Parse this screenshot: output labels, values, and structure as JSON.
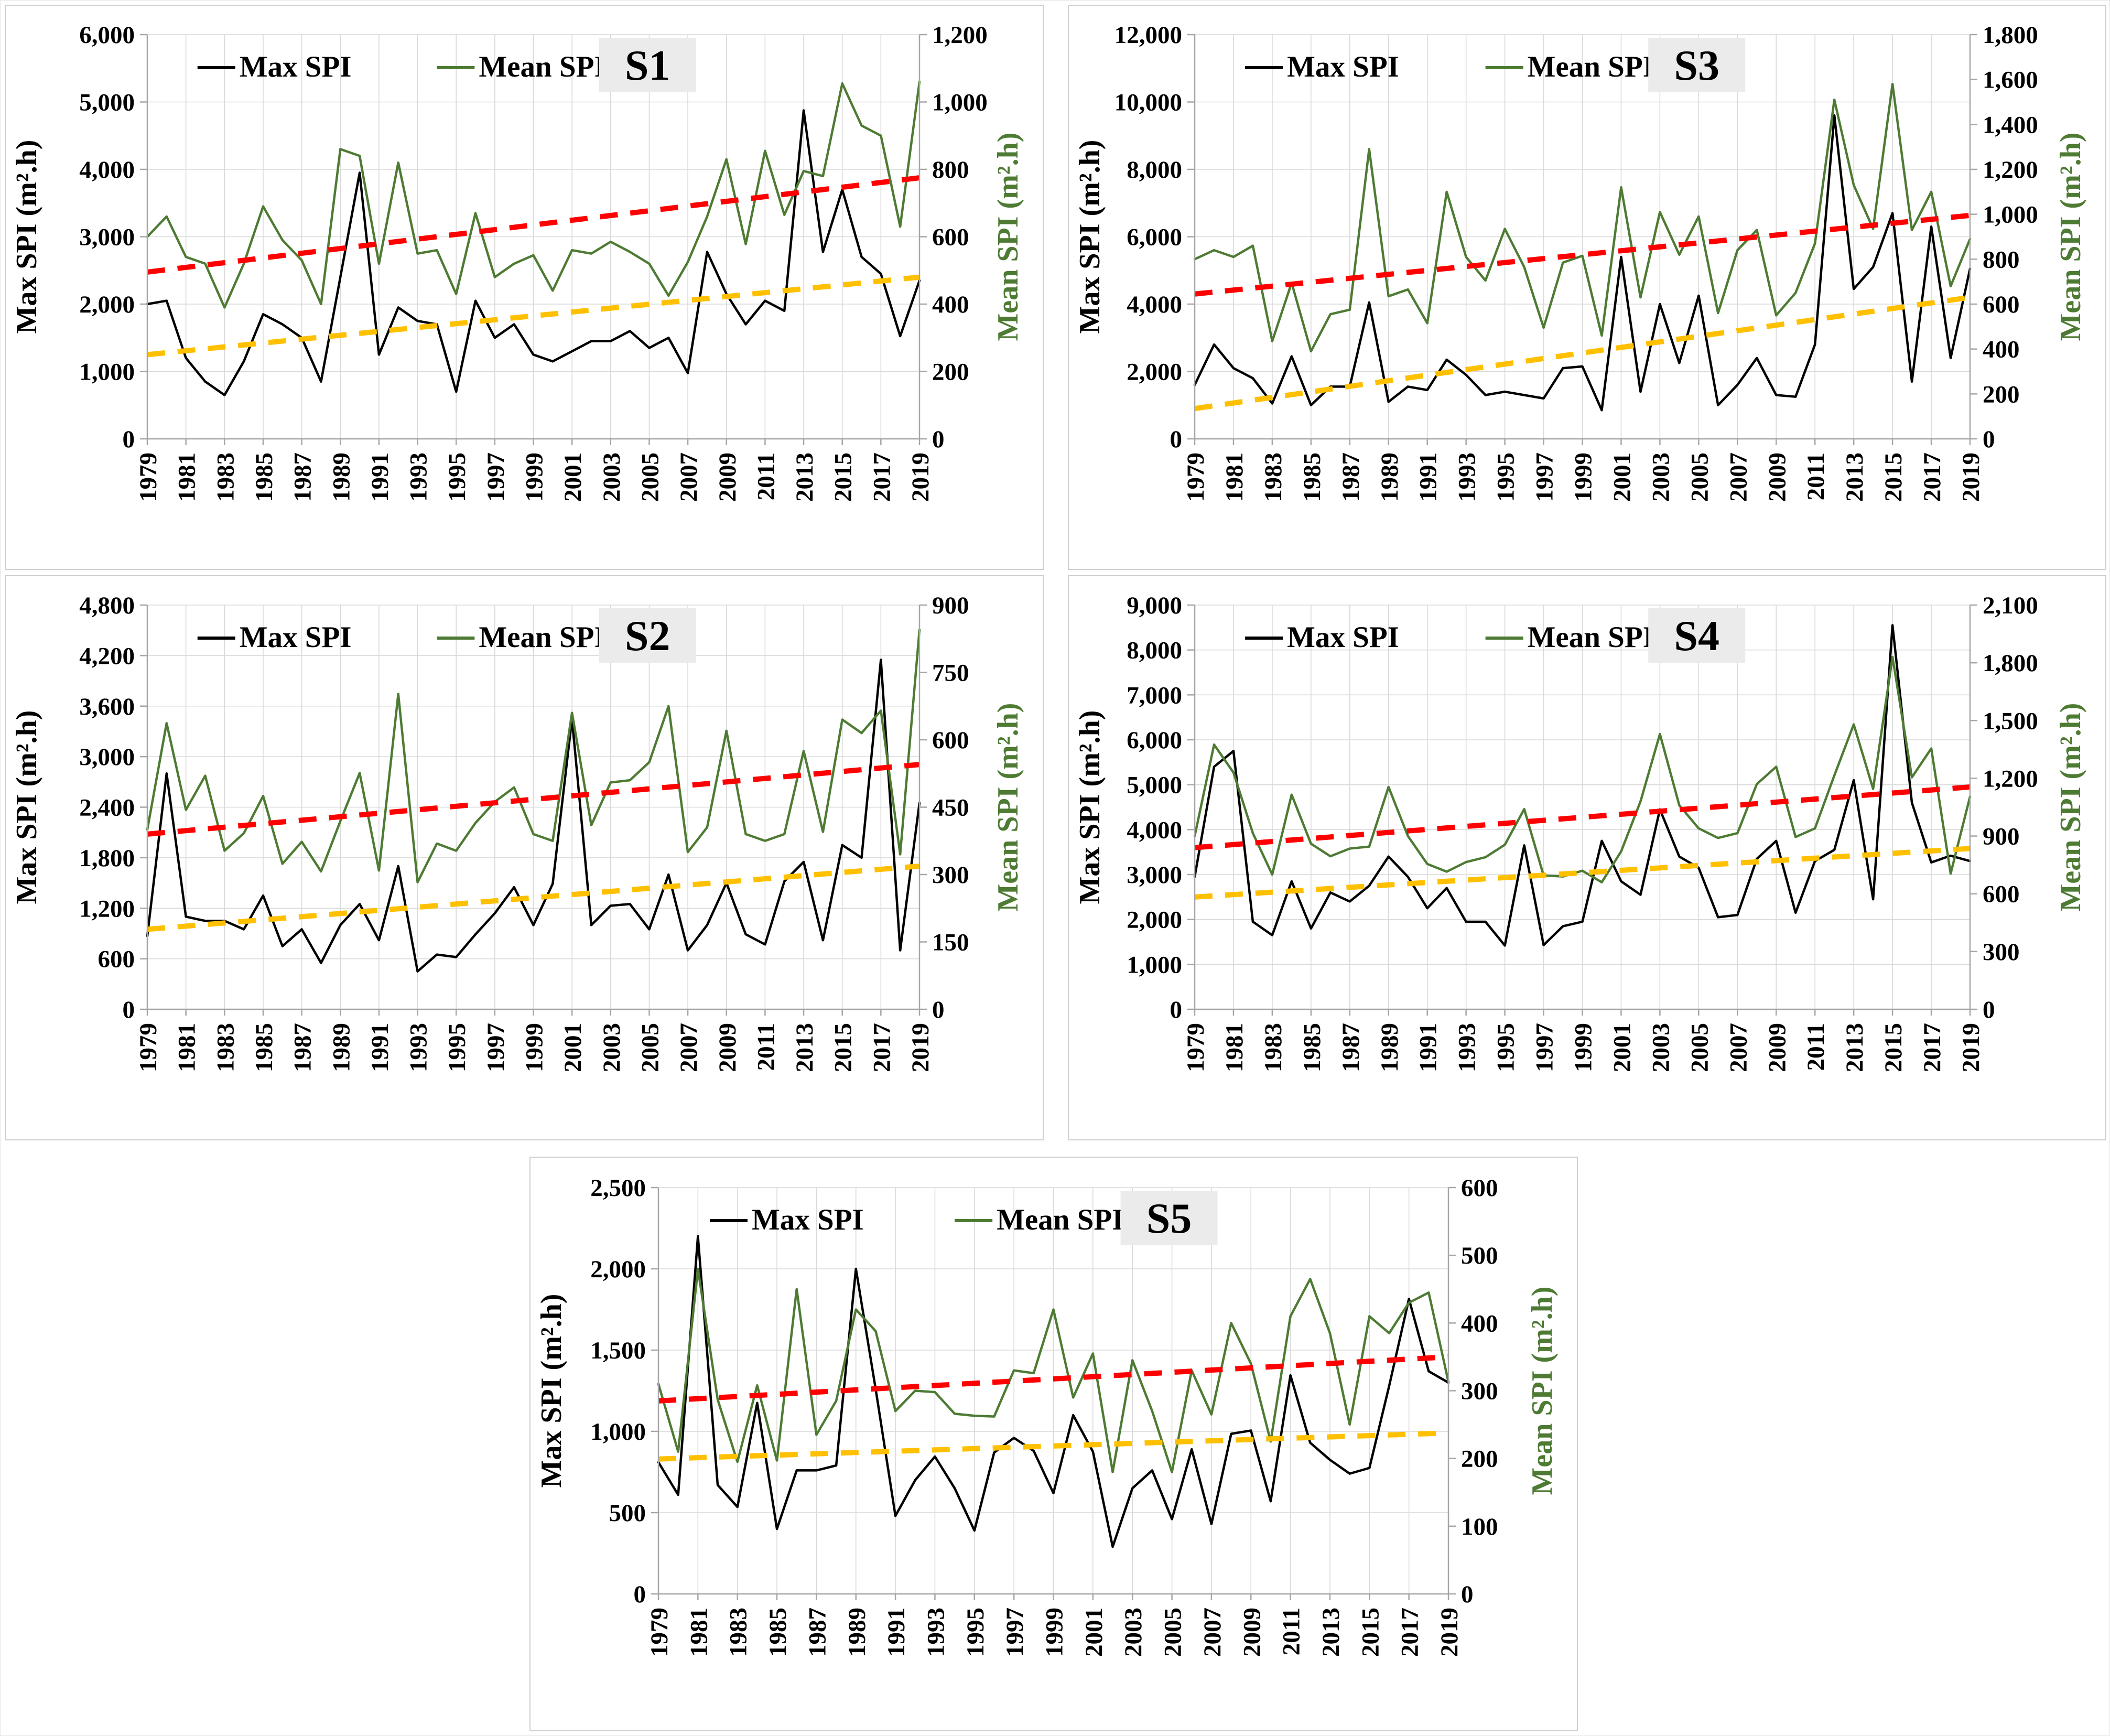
{
  "figure": {
    "description": "Five line charts (S1-S5) of annual Max SPI and Mean SPI, 1979-2019, each with dashed linear trend lines",
    "legend": {
      "max_label": "Max SPI",
      "mean_label": "Mean SPI"
    },
    "axis_titles": {
      "left": "Max SPI (m².h)",
      "right": "Mean SPI (m².h)"
    }
  },
  "colors": {
    "max_line": "#000000",
    "mean_line": "#4e7b33",
    "max_trend": "#ffc000",
    "mean_trend": "#fe0000",
    "grid": "#d9d9d9",
    "axis": "#a6a6a6",
    "title_bg": "#ebebeb",
    "text": "#000000"
  },
  "chart_data": [
    {
      "id": "S1",
      "type": "line",
      "title": "S1",
      "left_axis": {
        "title": "Max SPI (m².h)",
        "min": 0,
        "max": 6000,
        "step": 1000
      },
      "right_axis": {
        "title": "Mean SPI (m².h)",
        "min": 0,
        "max": 1200,
        "step": 200
      },
      "years": [
        1979,
        1980,
        1981,
        1982,
        1983,
        1984,
        1985,
        1986,
        1987,
        1988,
        1989,
        1990,
        1991,
        1992,
        1993,
        1994,
        1995,
        1996,
        1997,
        1998,
        1999,
        2000,
        2001,
        2002,
        2003,
        2004,
        2005,
        2006,
        2007,
        2008,
        2009,
        2010,
        2011,
        2012,
        2013,
        2014,
        2015,
        2016,
        2017,
        2018,
        2019
      ],
      "series": [
        {
          "name": "Max SPI",
          "axis": "left",
          "color": "#000000",
          "values": [
            2000,
            2050,
            1200,
            850,
            650,
            1150,
            1850,
            1700,
            1500,
            850,
            2400,
            3950,
            1250,
            1950,
            1750,
            1700,
            700,
            2050,
            1500,
            1700,
            1250,
            1150,
            1300,
            1450,
            1450,
            1600,
            1350,
            1500,
            975,
            2775,
            2150,
            1700,
            2050,
            1900,
            4875,
            2775,
            3700,
            2700,
            2450,
            1525,
            2350
          ]
        },
        {
          "name": "Mean SPI",
          "axis": "right",
          "color": "#4e7b33",
          "values": [
            600,
            660,
            540,
            520,
            390,
            520,
            690,
            590,
            530,
            400,
            860,
            840,
            520,
            820,
            550,
            560,
            430,
            670,
            480,
            520,
            545,
            440,
            560,
            550,
            585,
            555,
            520,
            425,
            525,
            660,
            830,
            578,
            855,
            665,
            795,
            780,
            1055,
            930,
            900,
            630,
            1060
          ]
        }
      ],
      "trendlines": [
        {
          "name": "Max SPI linear trend",
          "axis": "left",
          "color": "#ffc000",
          "start_value": 1250,
          "end_value": 2400
        },
        {
          "name": "Mean SPI linear trend",
          "axis": "right",
          "color": "#fe0000",
          "start_value": 495,
          "end_value": 775
        }
      ]
    },
    {
      "id": "S3",
      "type": "line",
      "title": "S3",
      "left_axis": {
        "title": "Max SPI (m².h)",
        "min": 0,
        "max": 12000,
        "step": 2000
      },
      "right_axis": {
        "title": "Mean SPI (m².h)",
        "min": 0,
        "max": 1800,
        "step": 200
      },
      "years": [
        1979,
        1980,
        1981,
        1982,
        1983,
        1984,
        1985,
        1986,
        1987,
        1988,
        1989,
        1990,
        1991,
        1992,
        1993,
        1994,
        1995,
        1996,
        1997,
        1998,
        1999,
        2000,
        2001,
        2002,
        2003,
        2004,
        2005,
        2006,
        2007,
        2008,
        2009,
        2010,
        2011,
        2012,
        2013,
        2014,
        2015,
        2016,
        2017,
        2018,
        2019
      ],
      "series": [
        {
          "name": "Max SPI",
          "axis": "left",
          "color": "#000000",
          "values": [
            1600,
            2800,
            2100,
            1800,
            1050,
            2450,
            1000,
            1550,
            1550,
            4050,
            1100,
            1550,
            1450,
            2350,
            1900,
            1300,
            1400,
            1300,
            1200,
            2100,
            2150,
            850,
            5400,
            1400,
            4000,
            2250,
            4250,
            1000,
            1600,
            2400,
            1300,
            1250,
            2800,
            9600,
            4450,
            5100,
            6700,
            1700,
            6300,
            2400,
            5050
          ]
        },
        {
          "name": "Mean SPI",
          "axis": "right",
          "color": "#4e7b33",
          "values": [
            800,
            840,
            810,
            860,
            435,
            695,
            390,
            555,
            575,
            1290,
            635,
            665,
            515,
            1100,
            810,
            705,
            935,
            765,
            495,
            785,
            815,
            460,
            1120,
            630,
            1010,
            820,
            990,
            560,
            840,
            930,
            550,
            650,
            870,
            1510,
            1130,
            935,
            1580,
            930,
            1100,
            680,
            890
          ]
        }
      ],
      "trendlines": [
        {
          "name": "Max SPI linear trend",
          "axis": "left",
          "color": "#ffc000",
          "start_value": 900,
          "end_value": 4200
        },
        {
          "name": "Mean SPI linear trend",
          "axis": "right",
          "color": "#fe0000",
          "start_value": 645,
          "end_value": 995
        }
      ]
    },
    {
      "id": "S2",
      "type": "line",
      "title": "S2",
      "left_axis": {
        "title": "Max SPI (m².h)",
        "min": 0,
        "max": 4800,
        "step": 600
      },
      "right_axis": {
        "title": "Mean SPI (m².h)",
        "min": 0,
        "max": 900,
        "step": 150
      },
      "years": [
        1979,
        1980,
        1981,
        1982,
        1983,
        1984,
        1985,
        1986,
        1987,
        1988,
        1989,
        1990,
        1991,
        1992,
        1993,
        1994,
        1995,
        1996,
        1997,
        1998,
        1999,
        2000,
        2001,
        2002,
        2003,
        2004,
        2005,
        2006,
        2007,
        2008,
        2009,
        2010,
        2011,
        2012,
        2013,
        2014,
        2015,
        2016,
        2017,
        2018,
        2019
      ],
      "series": [
        {
          "name": "Max SPI",
          "axis": "left",
          "color": "#000000",
          "values": [
            870,
            2800,
            1100,
            1050,
            1050,
            950,
            1350,
            750,
            950,
            550,
            1000,
            1250,
            820,
            1700,
            450,
            650,
            620,
            890,
            1140,
            1450,
            1000,
            1490,
            3450,
            1000,
            1230,
            1250,
            950,
            1600,
            700,
            1000,
            1500,
            890,
            770,
            1520,
            1750,
            820,
            1950,
            1800,
            4150,
            700,
            2450
          ]
        },
        {
          "name": "Mean SPI",
          "axis": "right",
          "color": "#4e7b33",
          "values": [
            400,
            637,
            444,
            520,
            353,
            392,
            475,
            324,
            373,
            307,
            419,
            526,
            309,
            702,
            283,
            369,
            353,
            415,
            462,
            494,
            390,
            375,
            660,
            410,
            505,
            510,
            550,
            675,
            350,
            405,
            620,
            390,
            375,
            390,
            575,
            395,
            645,
            615,
            665,
            345,
            845
          ]
        }
      ],
      "trendlines": [
        {
          "name": "Max SPI linear trend",
          "axis": "left",
          "color": "#ffc000",
          "start_value": 950,
          "end_value": 1700
        },
        {
          "name": "Mean SPI linear trend",
          "axis": "right",
          "color": "#fe0000",
          "start_value": 390,
          "end_value": 545
        }
      ]
    },
    {
      "id": "S4",
      "type": "line",
      "title": "S4",
      "left_axis": {
        "title": "Max SPI (m².h)",
        "min": 0,
        "max": 9000,
        "step": 1000
      },
      "right_axis": {
        "title": "Mean SPI (m².h)",
        "min": 0,
        "max": 2100,
        "step": 300
      },
      "years": [
        1979,
        1980,
        1981,
        1982,
        1983,
        1984,
        1985,
        1986,
        1987,
        1988,
        1989,
        1990,
        1991,
        1992,
        1993,
        1994,
        1995,
        1996,
        1997,
        1998,
        1999,
        2000,
        2001,
        2002,
        2003,
        2004,
        2005,
        2006,
        2007,
        2008,
        2009,
        2010,
        2011,
        2012,
        2013,
        2014,
        2015,
        2016,
        2017,
        2018,
        2019
      ],
      "series": [
        {
          "name": "Max SPI",
          "axis": "left",
          "color": "#000000",
          "values": [
            2950,
            5400,
            5750,
            1950,
            1650,
            2850,
            1800,
            2600,
            2400,
            2750,
            3400,
            2950,
            2250,
            2700,
            1950,
            1950,
            1420,
            3650,
            1430,
            1850,
            1950,
            3750,
            2850,
            2550,
            4450,
            3400,
            3150,
            2050,
            2100,
            3350,
            3750,
            2150,
            3300,
            3550,
            5100,
            2450,
            8550,
            4600,
            3270,
            3420,
            3300
          ]
        },
        {
          "name": "Mean SPI",
          "axis": "right",
          "color": "#4e7b33",
          "values": [
            900,
            1375,
            1230,
            915,
            700,
            1115,
            860,
            795,
            835,
            845,
            1155,
            900,
            755,
            715,
            765,
            790,
            855,
            1040,
            695,
            690,
            720,
            660,
            820,
            1080,
            1430,
            1060,
            940,
            890,
            915,
            1170,
            1260,
            895,
            940,
            1215,
            1480,
            1145,
            1830,
            1205,
            1355,
            705,
            1105
          ]
        }
      ],
      "trendlines": [
        {
          "name": "Max SPI linear trend",
          "axis": "left",
          "color": "#ffc000",
          "start_value": 2500,
          "end_value": 3580
        },
        {
          "name": "Mean SPI linear trend",
          "axis": "right",
          "color": "#fe0000",
          "start_value": 840,
          "end_value": 1155
        }
      ]
    },
    {
      "id": "S5",
      "type": "line",
      "title": "S5",
      "left_axis": {
        "title": "Max SPI (m².h)",
        "min": 0,
        "max": 2500,
        "step": 500
      },
      "right_axis": {
        "title": "Mean SPI (m².h)",
        "min": 0,
        "max": 600,
        "step": 100
      },
      "years": [
        1979,
        1980,
        1981,
        1982,
        1983,
        1984,
        1985,
        1986,
        1987,
        1988,
        1989,
        1990,
        1991,
        1992,
        1993,
        1994,
        1995,
        1996,
        1997,
        1998,
        1999,
        2000,
        2001,
        2002,
        2003,
        2004,
        2005,
        2006,
        2007,
        2008,
        2009,
        2010,
        2011,
        2012,
        2013,
        2014,
        2015,
        2016,
        2017,
        2018,
        2019
      ],
      "series": [
        {
          "name": "Max SPI",
          "axis": "left",
          "color": "#000000",
          "values": [
            810,
            610,
            2200,
            670,
            535,
            1175,
            400,
            760,
            760,
            790,
            2000,
            1260,
            480,
            700,
            845,
            650,
            390,
            870,
            960,
            880,
            620,
            1100,
            875,
            290,
            650,
            760,
            460,
            890,
            430,
            985,
            1005,
            570,
            1345,
            930,
            825,
            740,
            775,
            1280,
            1815,
            1370,
            1300
          ]
        },
        {
          "name": "Mean SPI",
          "axis": "right",
          "color": "#4e7b33",
          "values": [
            310,
            210,
            480,
            287,
            195,
            308,
            197,
            450,
            235,
            285,
            420,
            388,
            270,
            300,
            298,
            266,
            263,
            262,
            330,
            326,
            420,
            290,
            355,
            180,
            345,
            270,
            180,
            330,
            265,
            400,
            340,
            225,
            410,
            465,
            385,
            250,
            410,
            385,
            430,
            445,
            313
          ]
        }
      ],
      "trendlines": [
        {
          "name": "Max SPI linear trend",
          "axis": "left",
          "color": "#ffc000",
          "start_value": 830,
          "end_value": 990
        },
        {
          "name": "Mean SPI linear trend",
          "axis": "right",
          "color": "#fe0000",
          "start_value": 285,
          "end_value": 350
        }
      ]
    }
  ]
}
